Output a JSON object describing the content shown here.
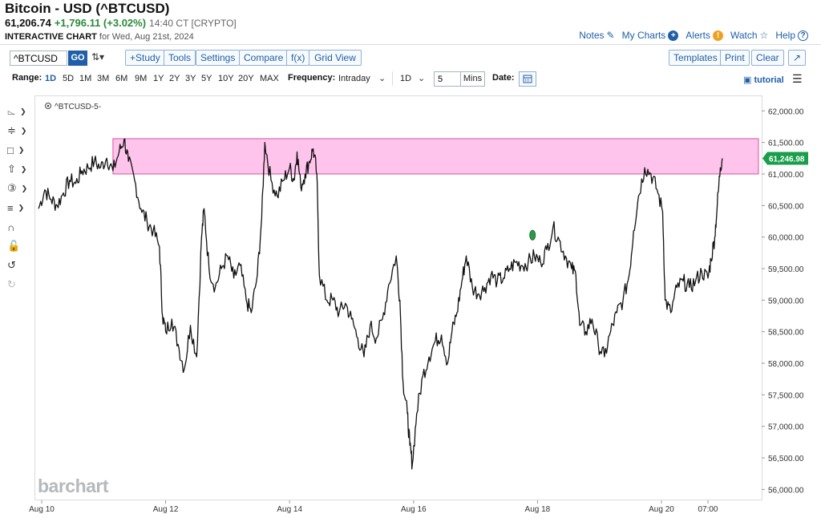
{
  "header": {
    "title": "Bitcoin - USD (^BTCUSD)",
    "price": "61,206.74",
    "change": "+1,796.11 (+3.02%)",
    "time": "14:40 CT [CRYPTO]",
    "chart_label": "INTERACTIVE CHART",
    "chart_date": "for Wed, Aug 21st, 2024"
  },
  "top_links": {
    "notes": "Notes",
    "my_charts": "My Charts",
    "alerts": "Alerts",
    "watch": "Watch",
    "help": "Help"
  },
  "toolbar": {
    "symbol_value": "^BTCUSD",
    "go": "GO",
    "study": "+Study",
    "tools": "Tools",
    "settings": "Settings",
    "compare": "Compare",
    "fx": "f(x)",
    "grid_view": "Grid View",
    "templates": "Templates",
    "print": "Print",
    "clear": "Clear"
  },
  "range_bar": {
    "range_label": "Range:",
    "ranges": [
      "1D",
      "5D",
      "1M",
      "3M",
      "6M",
      "9M",
      "1Y",
      "2Y",
      "3Y",
      "5Y",
      "10Y",
      "20Y",
      "MAX"
    ],
    "active_range": "1D",
    "frequency_label": "Frequency:",
    "frequency_value": "Intraday",
    "period_value": "1D",
    "interval_value": "5",
    "interval_unit": "Mins",
    "date_label": "Date:",
    "tutorial": "tutorial"
  },
  "colors": {
    "accent": "#1f5fa8",
    "up": "#2a8a3a",
    "line": "#111111",
    "zone_fill": "#ffc4ec",
    "zone_stroke": "#d4569f",
    "last_price_badge": "#1a9e4b"
  },
  "watermark": "barchart",
  "chart_data": {
    "type": "line",
    "series_label": "^BTCUSD-5-",
    "ylim": [
      55800,
      62200
    ],
    "y_ticks": [
      "62,000.00",
      "61,500.00",
      "61,000.00",
      "60,500.00",
      "60,000.00",
      "59,500.00",
      "59,000.00",
      "58,500.00",
      "58,000.00",
      "57,500.00",
      "57,000.00",
      "56,500.00",
      "56,000.00"
    ],
    "y_tick_values": [
      62000,
      61500,
      61000,
      60500,
      60000,
      59500,
      59000,
      58500,
      58000,
      57500,
      57000,
      56500,
      56000
    ],
    "x_ticks": [
      "Aug 10",
      "Aug 12",
      "Aug 14",
      "Aug 16",
      "Aug 18",
      "Aug 20",
      "07:00"
    ],
    "x_tick_days": [
      0,
      2,
      4,
      6,
      8,
      10,
      10.75
    ],
    "last_price": "61,246.98",
    "last_price_value": 61246.98,
    "resistance_zone": {
      "low": 61000,
      "high": 61560,
      "from_day": 1.15
    },
    "points": [
      [
        -0.05,
        60450
      ],
      [
        0.05,
        60750
      ],
      [
        0.15,
        60600
      ],
      [
        0.25,
        60500
      ],
      [
        0.35,
        60700
      ],
      [
        0.45,
        60900
      ],
      [
        0.55,
        60850
      ],
      [
        0.65,
        61050
      ],
      [
        0.75,
        61100
      ],
      [
        0.85,
        61200
      ],
      [
        0.95,
        61100
      ],
      [
        1.05,
        61250
      ],
      [
        1.15,
        61050
      ],
      [
        1.25,
        61350
      ],
      [
        1.33,
        61550
      ],
      [
        1.4,
        61200
      ],
      [
        1.5,
        60900
      ],
      [
        1.6,
        60450
      ],
      [
        1.7,
        60250
      ],
      [
        1.8,
        60100
      ],
      [
        1.9,
        59850
      ],
      [
        1.95,
        58750
      ],
      [
        2.0,
        58500
      ],
      [
        2.1,
        58700
      ],
      [
        2.2,
        58300
      ],
      [
        2.3,
        57900
      ],
      [
        2.4,
        58600
      ],
      [
        2.5,
        58100
      ],
      [
        2.58,
        60000
      ],
      [
        2.62,
        60450
      ],
      [
        2.7,
        59500
      ],
      [
        2.8,
        59200
      ],
      [
        2.9,
        59500
      ],
      [
        3.0,
        59700
      ],
      [
        3.1,
        59350
      ],
      [
        3.2,
        59550
      ],
      [
        3.3,
        59000
      ],
      [
        3.38,
        58800
      ],
      [
        3.48,
        59400
      ],
      [
        3.55,
        60300
      ],
      [
        3.6,
        61500
      ],
      [
        3.7,
        60900
      ],
      [
        3.8,
        60650
      ],
      [
        3.9,
        60900
      ],
      [
        4.0,
        61100
      ],
      [
        4.07,
        60900
      ],
      [
        4.12,
        61350
      ],
      [
        4.18,
        60800
      ],
      [
        4.25,
        61000
      ],
      [
        4.32,
        61200
      ],
      [
        4.38,
        61400
      ],
      [
        4.44,
        61000
      ],
      [
        4.48,
        59400
      ],
      [
        4.6,
        59000
      ],
      [
        4.7,
        59000
      ],
      [
        4.8,
        58800
      ],
      [
        4.9,
        58950
      ],
      [
        5.0,
        58700
      ],
      [
        5.1,
        58400
      ],
      [
        5.2,
        58100
      ],
      [
        5.3,
        58600
      ],
      [
        5.4,
        58400
      ],
      [
        5.5,
        58700
      ],
      [
        5.6,
        59250
      ],
      [
        5.72,
        59700
      ],
      [
        5.78,
        59000
      ],
      [
        5.83,
        57700
      ],
      [
        5.9,
        57200
      ],
      [
        5.94,
        56700
      ],
      [
        5.98,
        56400
      ],
      [
        6.05,
        57200
      ],
      [
        6.15,
        57800
      ],
      [
        6.25,
        58100
      ],
      [
        6.35,
        58350
      ],
      [
        6.45,
        58450
      ],
      [
        6.55,
        58000
      ],
      [
        6.62,
        58500
      ],
      [
        6.7,
        58800
      ],
      [
        6.78,
        59300
      ],
      [
        6.85,
        59700
      ],
      [
        6.95,
        59200
      ],
      [
        7.05,
        59100
      ],
      [
        7.15,
        59200
      ],
      [
        7.25,
        59400
      ],
      [
        7.35,
        59300
      ],
      [
        7.45,
        59350
      ],
      [
        7.55,
        59500
      ],
      [
        7.65,
        59600
      ],
      [
        7.75,
        59550
      ],
      [
        7.85,
        59600
      ],
      [
        7.95,
        59700
      ],
      [
        8.05,
        59600
      ],
      [
        8.15,
        59800
      ],
      [
        8.25,
        60150
      ],
      [
        8.35,
        59950
      ],
      [
        8.45,
        59700
      ],
      [
        8.55,
        59500
      ],
      [
        8.62,
        59400
      ],
      [
        8.68,
        58600
      ],
      [
        8.78,
        58500
      ],
      [
        8.88,
        58700
      ],
      [
        8.98,
        58300
      ],
      [
        9.08,
        58100
      ],
      [
        9.18,
        58500
      ],
      [
        9.28,
        58800
      ],
      [
        9.38,
        59000
      ],
      [
        9.48,
        59400
      ],
      [
        9.55,
        60100
      ],
      [
        9.63,
        60650
      ],
      [
        9.73,
        61100
      ],
      [
        9.83,
        61000
      ],
      [
        9.93,
        60750
      ],
      [
        10.02,
        60400
      ],
      [
        10.06,
        59000
      ],
      [
        10.15,
        58800
      ],
      [
        10.25,
        59200
      ],
      [
        10.35,
        59300
      ],
      [
        10.45,
        59200
      ],
      [
        10.55,
        59300
      ],
      [
        10.65,
        59450
      ],
      [
        10.75,
        59350
      ],
      [
        10.8,
        59650
      ],
      [
        10.86,
        60000
      ],
      [
        10.9,
        60500
      ],
      [
        10.95,
        61100
      ],
      [
        10.98,
        61246.98
      ]
    ],
    "annotations": [
      "shaded resistance zone 61,000 - 61,560",
      "green marker near Aug 18"
    ],
    "grid": false,
    "legend": "none"
  }
}
